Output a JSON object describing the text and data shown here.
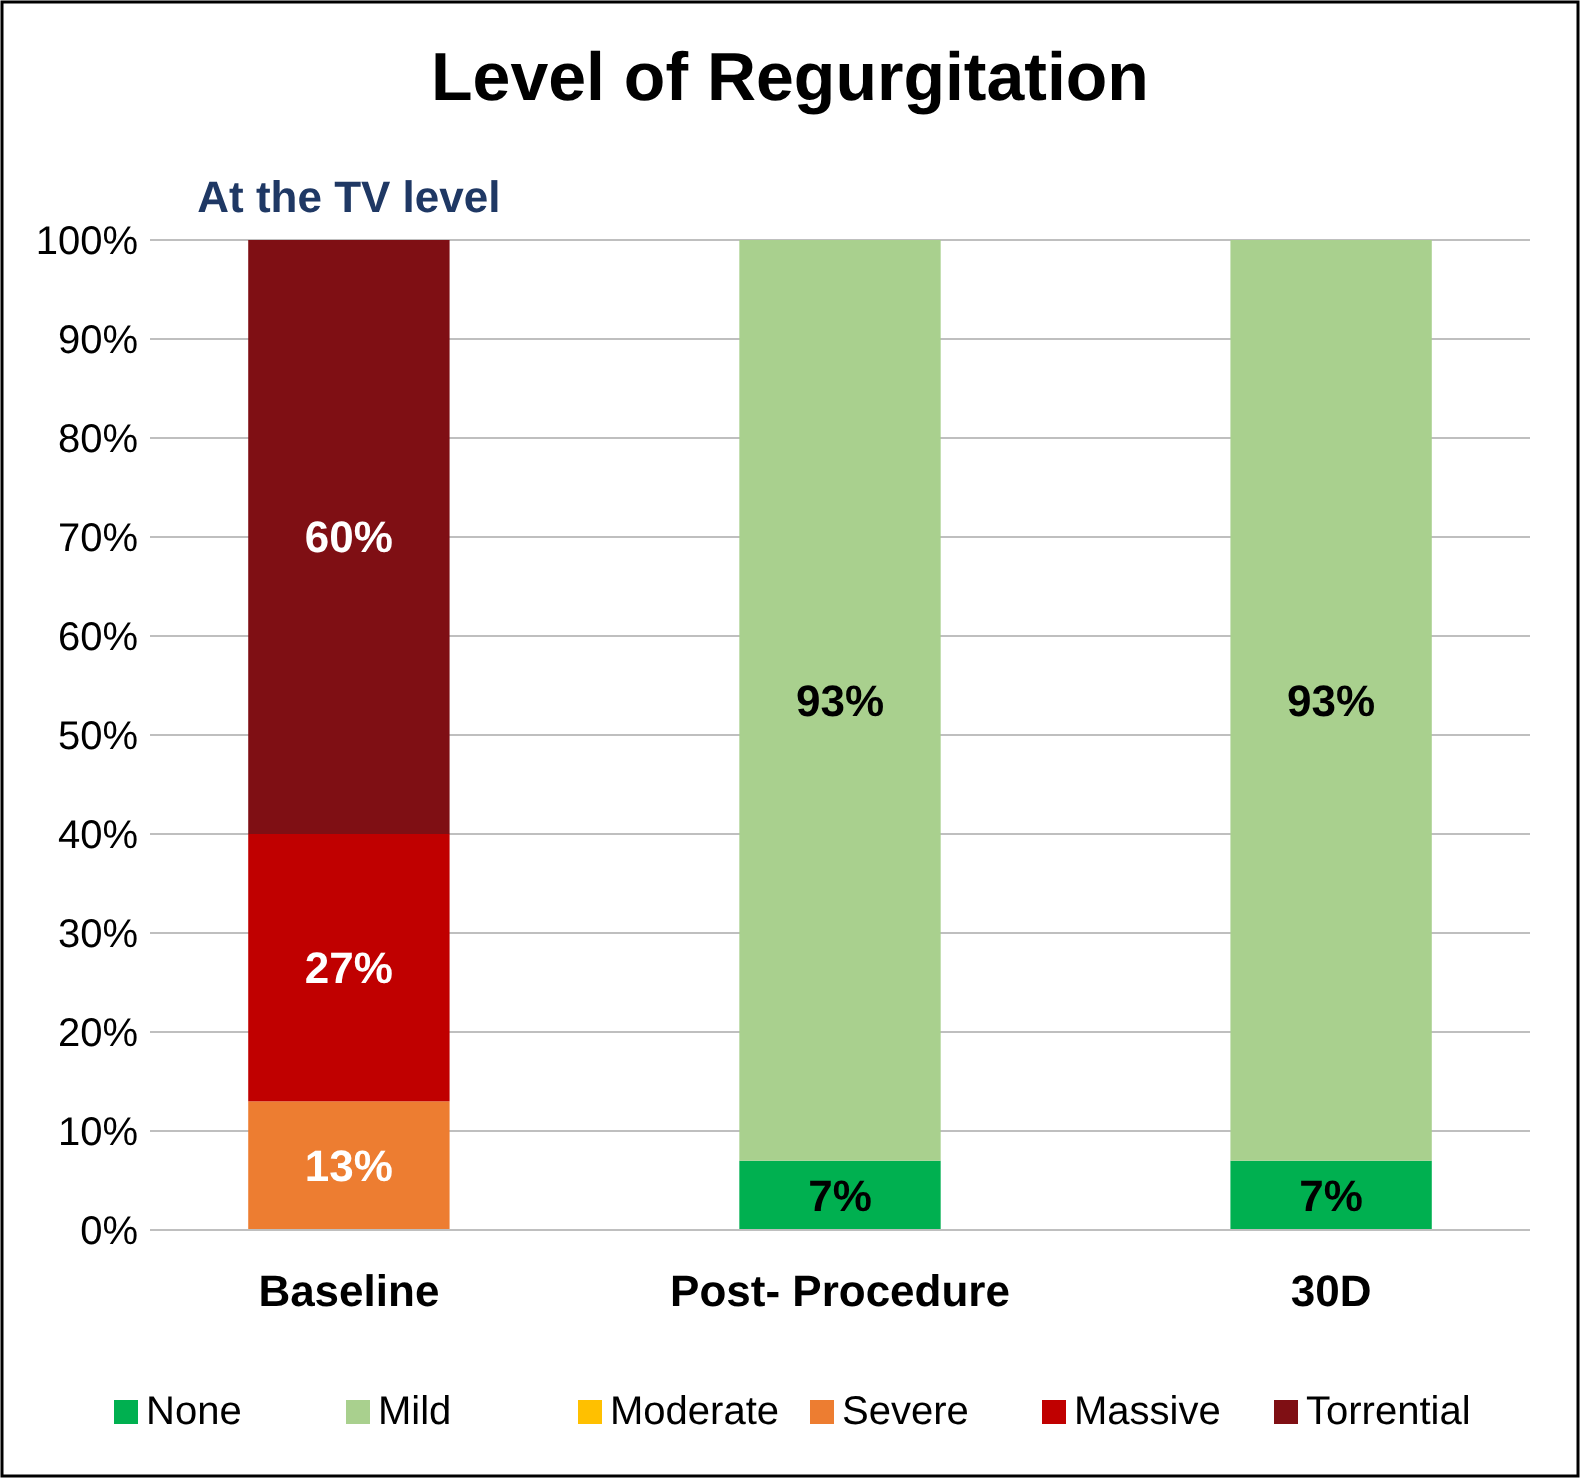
{
  "chart_data": {
    "type": "bar",
    "title": "Level of Regurgitation",
    "stacked": true,
    "categories": [
      "Baseline",
      "Post- Procedure",
      "30D"
    ],
    "series": [
      {
        "name": "None",
        "color": "#00b050",
        "values": [
          0,
          7,
          7
        ],
        "value_labels": [
          null,
          "7%",
          "7%"
        ]
      },
      {
        "name": "Mild",
        "color": "#a9d08e",
        "values": [
          0,
          93,
          93
        ],
        "value_labels": [
          null,
          "93%",
          "93%"
        ]
      },
      {
        "name": "Moderate",
        "color": "#ffc000",
        "values": [
          0,
          0,
          0
        ],
        "value_labels": [
          null,
          null,
          null
        ]
      },
      {
        "name": "Severe",
        "color": "#ed7d31",
        "values": [
          13,
          0,
          0
        ],
        "value_labels": [
          "13%",
          null,
          null
        ]
      },
      {
        "name": "Massive",
        "color": "#c00000",
        "values": [
          27,
          0,
          0
        ],
        "value_labels": [
          "27%",
          null,
          null
        ]
      },
      {
        "name": "Torrential",
        "color": "#7f0f14",
        "values": [
          60,
          0,
          0
        ],
        "value_labels": [
          "60%",
          null,
          null
        ]
      }
    ],
    "ylim": [
      0,
      100
    ],
    "yticks": [
      {
        "value": 0,
        "label": "0%"
      },
      {
        "value": 10,
        "label": "10%"
      },
      {
        "value": 20,
        "label": "20%"
      },
      {
        "value": 30,
        "label": "30%"
      },
      {
        "value": 40,
        "label": "40%"
      },
      {
        "value": 50,
        "label": "50%"
      },
      {
        "value": 60,
        "label": "60%"
      },
      {
        "value": 70,
        "label": "70%"
      },
      {
        "value": 80,
        "label": "80%"
      },
      {
        "value": 90,
        "label": "90%"
      },
      {
        "value": 100,
        "label": "100%"
      }
    ],
    "grid": "y",
    "legend": "bottom",
    "annotations": [
      "At the TV level"
    ]
  }
}
